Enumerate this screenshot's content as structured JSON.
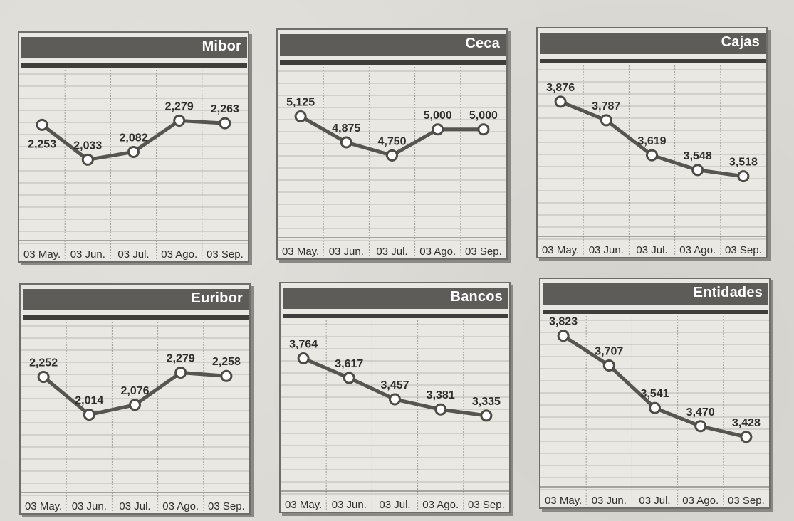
{
  "chart_data": [
    {
      "type": "line",
      "title": "Mibor",
      "categories": [
        "03 May.",
        "03 Jun.",
        "03 Jul.",
        "03 Ago.",
        "03 Sep."
      ],
      "values": [
        2.253,
        2.033,
        2.082,
        2.279,
        2.263
      ],
      "data_labels": [
        "2,253",
        "2,033",
        "2,082",
        "2,279",
        "2,263"
      ],
      "label_pos": [
        "below",
        "above",
        "above",
        "above",
        "above"
      ],
      "ylim": [
        1.55,
        2.6
      ],
      "grid": true
    },
    {
      "type": "line",
      "title": "Ceca",
      "categories": [
        "03 May.",
        "03 Jun.",
        "03 Jul.",
        "03 Ago.",
        "03 Sep."
      ],
      "values": [
        5.125,
        4.875,
        4.75,
        5.0,
        5.0
      ],
      "data_labels": [
        "5,125",
        "4,875",
        "4,750",
        "5,000",
        "5,000"
      ],
      "label_pos": [
        "above",
        "above",
        "above",
        "above",
        "above"
      ],
      "ylim": [
        4.0,
        5.6
      ],
      "grid": true
    },
    {
      "type": "line",
      "title": "Cajas",
      "categories": [
        "03 May.",
        "03 Jun.",
        "03 Jul.",
        "03 Ago.",
        "03 Sep."
      ],
      "values": [
        3.876,
        3.787,
        3.619,
        3.548,
        3.518
      ],
      "data_labels": [
        "3,876",
        "3,787",
        "3,619",
        "3,548",
        "3,518"
      ],
      "label_pos": [
        "above",
        "above",
        "above",
        "above",
        "above"
      ],
      "ylim": [
        3.25,
        4.05
      ],
      "grid": true
    },
    {
      "type": "line",
      "title": "Euribor",
      "categories": [
        "03 May.",
        "03 Jun.",
        "03 Jul.",
        "03 Ago.",
        "03 Sep."
      ],
      "values": [
        2.252,
        2.014,
        2.076,
        2.279,
        2.258
      ],
      "data_labels": [
        "2,252",
        "2,014",
        "2,076",
        "2,279",
        "2,258"
      ],
      "label_pos": [
        "above",
        "above",
        "above",
        "above",
        "above"
      ],
      "ylim": [
        1.55,
        2.6
      ],
      "grid": true
    },
    {
      "type": "line",
      "title": "Bancos",
      "categories": [
        "03 May.",
        "03 Jun.",
        "03 Jul.",
        "03 Ago.",
        "03 Sep."
      ],
      "values": [
        3.764,
        3.617,
        3.457,
        3.381,
        3.335
      ],
      "data_labels": [
        "3,764",
        "3,617",
        "3,457",
        "3,381",
        "3,335"
      ],
      "label_pos": [
        "above",
        "above",
        "above",
        "above",
        "above"
      ],
      "ylim": [
        2.8,
        4.05
      ],
      "grid": true
    },
    {
      "type": "line",
      "title": "Entidades",
      "categories": [
        "03 May.",
        "03 Jun.",
        "03 Jul.",
        "03 Ago.",
        "03 Sep."
      ],
      "values": [
        3.823,
        3.707,
        3.541,
        3.47,
        3.428
      ],
      "data_labels": [
        "3,823",
        "3,707",
        "3,541",
        "3,470",
        "3,428"
      ],
      "label_pos": [
        "above",
        "above",
        "above",
        "above",
        "above"
      ],
      "ylim": [
        3.25,
        3.9
      ],
      "grid": true
    }
  ]
}
